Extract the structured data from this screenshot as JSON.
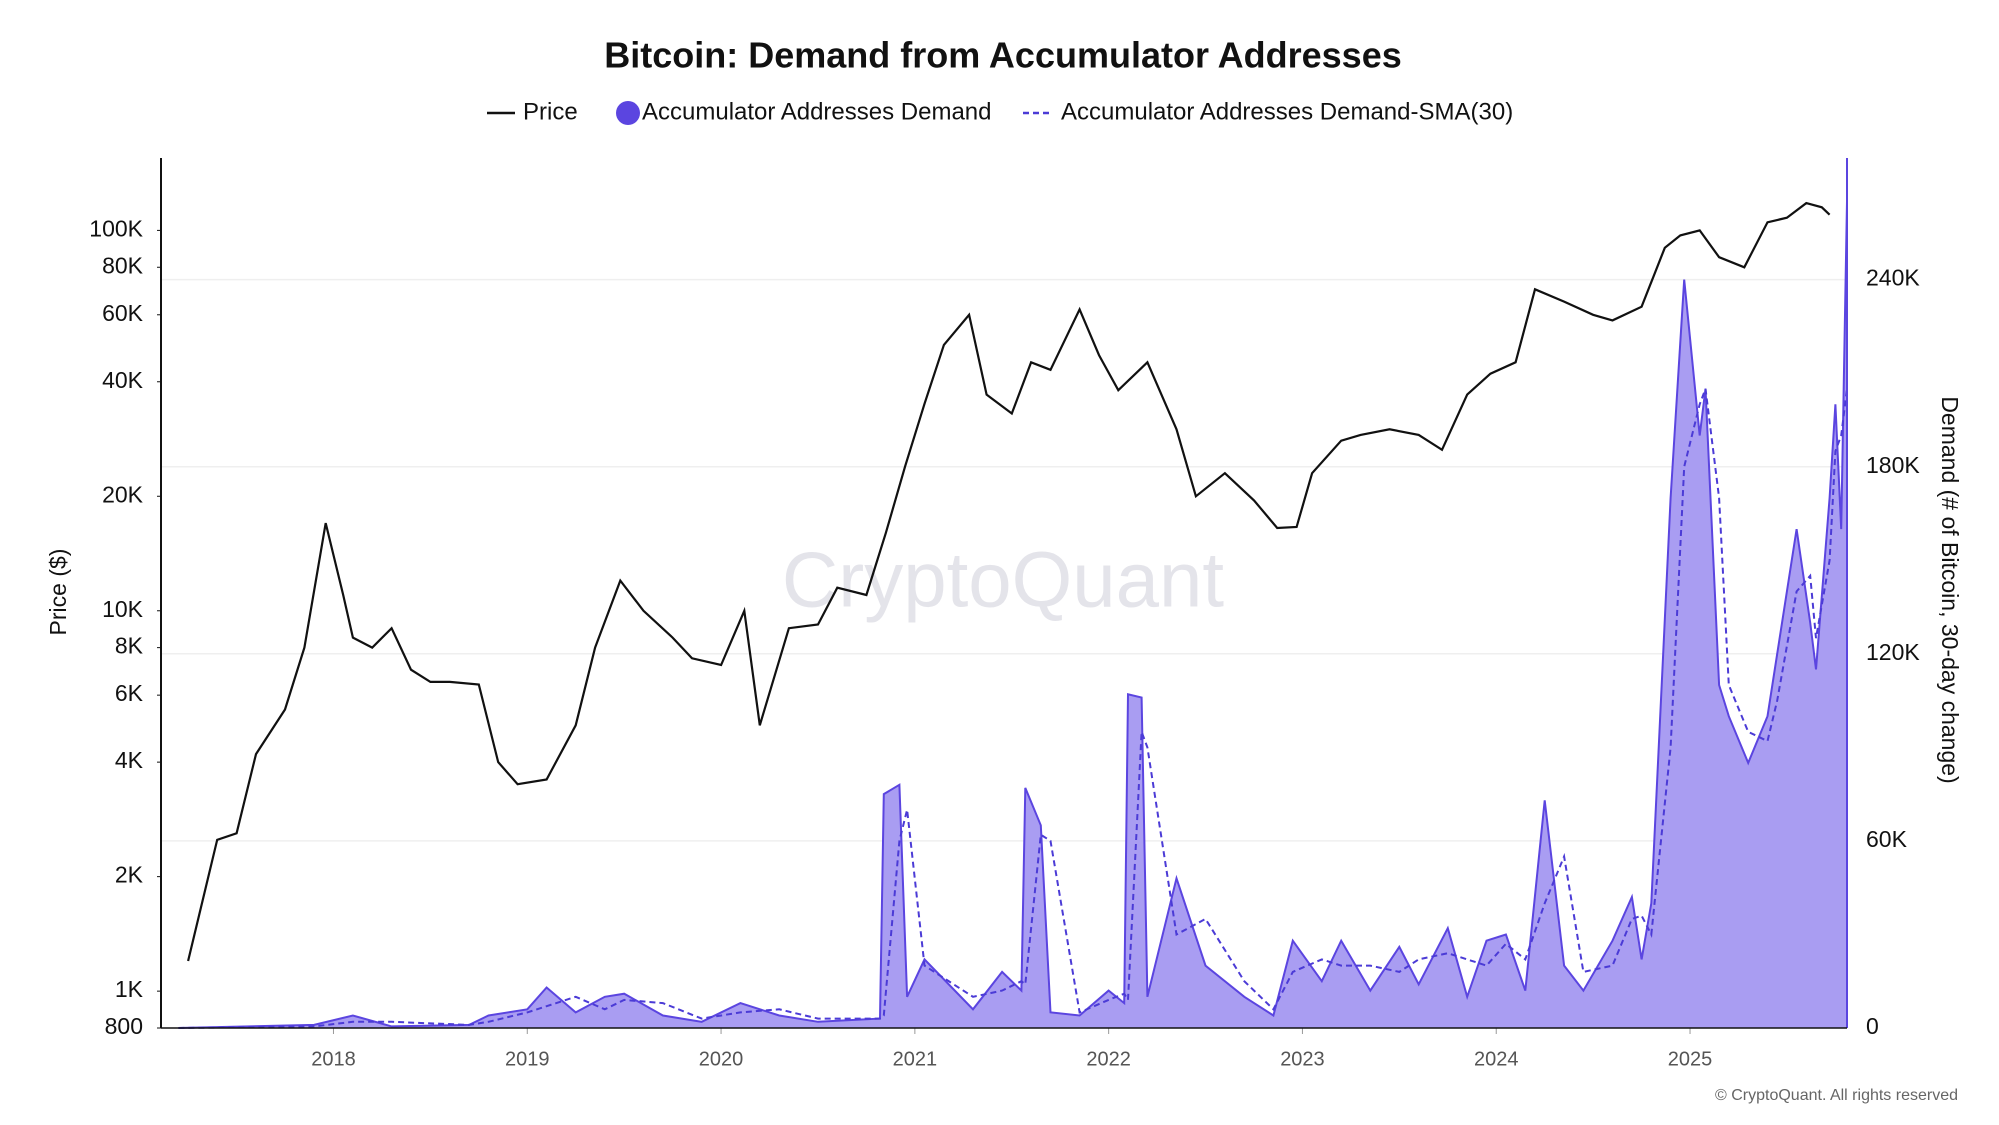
{
  "chart_data": {
    "type": "line",
    "title": "Bitcoin: Demand from Accumulator Addresses",
    "watermark": "CryptoQuant",
    "footer": "© CryptoQuant. All rights reserved",
    "ylabel": "Price ($)",
    "y2label": "Demand (# of Bitcoin, 30-day change)",
    "xlim": [
      2017.11,
      2025.81
    ],
    "xticks": [
      2018,
      2019,
      2020,
      2021,
      2022,
      2023,
      2024,
      2025
    ],
    "ylim": [
      800,
      155000
    ],
    "ylog": true,
    "yticks": [
      800,
      {
        "value": 1000,
        "label": "1K"
      },
      {
        "value": 2000,
        "label": "2K"
      },
      {
        "value": 4000,
        "label": "4K"
      },
      {
        "value": 6000,
        "label": "6K"
      },
      {
        "value": 8000,
        "label": "8K"
      },
      {
        "value": 10000,
        "label": "10K"
      },
      {
        "value": 20000,
        "label": "20K"
      },
      {
        "value": 40000,
        "label": "40K"
      },
      {
        "value": 60000,
        "label": "60K"
      },
      {
        "value": 80000,
        "label": "80K"
      },
      {
        "value": 100000,
        "label": "100K"
      }
    ],
    "y2lim": [
      0,
      279000
    ],
    "y2ticks": [
      0,
      {
        "value": 60000,
        "label": "60K"
      },
      {
        "value": 120000,
        "label": "120K"
      },
      {
        "value": 180000,
        "label": "180K"
      },
      {
        "value": 240000,
        "label": "240K"
      }
    ],
    "grid": true,
    "series": [
      {
        "name": "Price",
        "kind": "line",
        "color": "#111111",
        "axis": "y",
        "x": [
          2017.25,
          2017.4,
          2017.5,
          2017.6,
          2017.75,
          2017.85,
          2017.96,
          2018.05,
          2018.1,
          2018.2,
          2018.3,
          2018.4,
          2018.5,
          2018.6,
          2018.75,
          2018.85,
          2018.95,
          2019.1,
          2019.25,
          2019.35,
          2019.48,
          2019.6,
          2019.75,
          2019.85,
          2020.0,
          2020.12,
          2020.2,
          2020.35,
          2020.5,
          2020.6,
          2020.75,
          2020.85,
          2020.95,
          2021.05,
          2021.15,
          2021.28,
          2021.37,
          2021.5,
          2021.6,
          2021.7,
          2021.85,
          2021.95,
          2022.05,
          2022.2,
          2022.35,
          2022.45,
          2022.6,
          2022.75,
          2022.87,
          2022.97,
          2023.05,
          2023.2,
          2023.3,
          2023.45,
          2023.6,
          2023.72,
          2023.85,
          2023.97,
          2024.1,
          2024.2,
          2024.35,
          2024.5,
          2024.6,
          2024.75,
          2024.87,
          2024.95,
          2025.05,
          2025.15,
          2025.28,
          2025.4,
          2025.5,
          2025.6,
          2025.68,
          2025.72
        ],
        "values": [
          1200,
          2500,
          2600,
          4200,
          5500,
          8000,
          17000,
          11000,
          8500,
          8000,
          9000,
          7000,
          6500,
          6500,
          6400,
          4000,
          3500,
          3600,
          5000,
          8000,
          12000,
          10000,
          8500,
          7500,
          7200,
          10000,
          5000,
          9000,
          9200,
          11500,
          11000,
          16000,
          24000,
          35000,
          50000,
          60000,
          37000,
          33000,
          45000,
          43000,
          62000,
          47000,
          38000,
          45000,
          30000,
          20000,
          23000,
          19500,
          16500,
          16600,
          23000,
          28000,
          29000,
          30000,
          29000,
          26500,
          37000,
          42000,
          45000,
          70000,
          65000,
          60000,
          58000,
          63000,
          90000,
          97000,
          100000,
          85000,
          80000,
          105000,
          108000,
          118000,
          115000,
          110000
        ]
      },
      {
        "name": "Accumulator Addresses Demand",
        "kind": "area",
        "color": "#5b45e0",
        "fill": "#a99df2",
        "axis": "y2",
        "x": [
          2017.2,
          2017.9,
          2018.1,
          2018.3,
          2018.7,
          2018.8,
          2019.0,
          2019.1,
          2019.25,
          2019.4,
          2019.5,
          2019.7,
          2019.9,
          2020.1,
          2020.3,
          2020.5,
          2020.82,
          2020.84,
          2020.92,
          2020.96,
          2021.05,
          2021.3,
          2021.45,
          2021.55,
          2021.57,
          2021.65,
          2021.7,
          2021.85,
          2022.0,
          2022.08,
          2022.1,
          2022.17,
          2022.2,
          2022.35,
          2022.5,
          2022.7,
          2022.85,
          2022.95,
          2023.1,
          2023.2,
          2023.35,
          2023.5,
          2023.6,
          2023.75,
          2023.85,
          2023.95,
          2024.05,
          2024.15,
          2024.25,
          2024.35,
          2024.45,
          2024.6,
          2024.7,
          2024.75,
          2024.8,
          2024.9,
          2024.97,
          2025.05,
          2025.08,
          2025.15,
          2025.2,
          2025.3,
          2025.4,
          2025.45,
          2025.55,
          2025.62,
          2025.65,
          2025.72,
          2025.75,
          2025.78,
          2025.81
        ],
        "values": [
          0,
          1000,
          4000,
          500,
          1000,
          4000,
          6000,
          13000,
          5000,
          10000,
          11000,
          4000,
          2000,
          8000,
          4000,
          2000,
          3000,
          75000,
          78000,
          10000,
          22000,
          6000,
          18000,
          12000,
          77000,
          65000,
          5000,
          4000,
          12000,
          8000,
          107000,
          106000,
          10000,
          48000,
          20000,
          10000,
          4000,
          28000,
          15000,
          28000,
          12000,
          26000,
          14000,
          32000,
          10000,
          28000,
          30000,
          12000,
          73000,
          20000,
          12000,
          28000,
          42000,
          22000,
          40000,
          170000,
          240000,
          190000,
          205000,
          110000,
          100000,
          85000,
          100000,
          120000,
          160000,
          130000,
          115000,
          170000,
          200000,
          160000,
          265000
        ]
      },
      {
        "name": "Accumulator Addresses Demand-SMA(30)",
        "kind": "dashed",
        "color": "#4b3bd6",
        "axis": "y2",
        "x": [
          2017.2,
          2017.9,
          2018.1,
          2018.3,
          2018.7,
          2018.8,
          2019.0,
          2019.1,
          2019.25,
          2019.4,
          2019.5,
          2019.7,
          2019.9,
          2020.1,
          2020.3,
          2020.5,
          2020.82,
          2020.84,
          2020.92,
          2020.96,
          2021.05,
          2021.3,
          2021.45,
          2021.55,
          2021.57,
          2021.65,
          2021.7,
          2021.85,
          2022.0,
          2022.08,
          2022.1,
          2022.17,
          2022.2,
          2022.35,
          2022.5,
          2022.7,
          2022.85,
          2022.95,
          2023.1,
          2023.2,
          2023.35,
          2023.5,
          2023.6,
          2023.75,
          2023.85,
          2023.95,
          2024.05,
          2024.15,
          2024.25,
          2024.35,
          2024.45,
          2024.6,
          2024.7,
          2024.75,
          2024.8,
          2024.9,
          2024.97,
          2025.05,
          2025.08,
          2025.15,
          2025.2,
          2025.3,
          2025.4,
          2025.45,
          2025.55,
          2025.62,
          2025.65,
          2025.72,
          2025.75,
          2025.78,
          2025.81
        ],
        "values": [
          0,
          500,
          2000,
          2000,
          1000,
          2000,
          5000,
          7000,
          10000,
          6000,
          9000,
          8000,
          3000,
          5000,
          6000,
          3000,
          3000,
          4000,
          60000,
          70000,
          20000,
          10000,
          12000,
          15000,
          14000,
          62000,
          60000,
          5000,
          9000,
          11000,
          9000,
          95000,
          90000,
          30000,
          35000,
          15000,
          6000,
          18000,
          22000,
          20000,
          20000,
          18000,
          22000,
          24000,
          22000,
          20000,
          27000,
          22000,
          40000,
          55000,
          18000,
          20000,
          35000,
          36000,
          30000,
          90000,
          180000,
          200000,
          205000,
          170000,
          110000,
          95000,
          92000,
          105000,
          140000,
          145000,
          125000,
          150000,
          185000,
          190000,
          205000
        ]
      }
    ]
  }
}
